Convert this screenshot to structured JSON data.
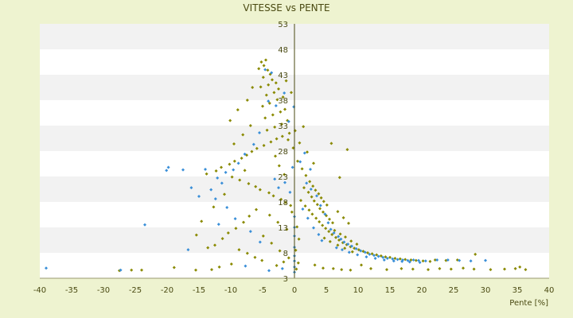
{
  "chart_data": {
    "type": "scatter",
    "title": "VITESSE vs PENTE",
    "xlabel": "Pente [%]",
    "ylabel": "",
    "xlim": [
      -40,
      40
    ],
    "ylim": [
      3,
      53
    ],
    "x_ticks": [
      -40,
      -35,
      -30,
      -25,
      -20,
      -15,
      -10,
      -5,
      0,
      5,
      10,
      15,
      20,
      25,
      30,
      35,
      40
    ],
    "y_ticks": [
      3,
      8,
      13,
      18,
      23,
      28,
      33,
      38,
      43,
      48,
      53
    ],
    "grid": "horizontal alternating bands",
    "legend": "none",
    "colors": {
      "background": "#eef3d0",
      "band_light": "#ffffff",
      "band_dark": "#f2f2f2",
      "axis": "#4a4a12",
      "series_olive": "#8a8a00",
      "series_blue": "#3a8fd8"
    },
    "series": [
      {
        "color": "#8a8a00",
        "points": [
          [
            -5.2,
            45.5
          ],
          [
            -4.8,
            44.8
          ],
          [
            -4.5,
            45.9
          ],
          [
            -5.6,
            44.2
          ],
          [
            -4.2,
            43.9
          ],
          [
            -3.8,
            43.1
          ],
          [
            -4.9,
            42.5
          ],
          [
            -3.5,
            42.0
          ],
          [
            -2.9,
            41.4
          ],
          [
            -4.1,
            41.0
          ],
          [
            -5.3,
            40.6
          ],
          [
            -2.5,
            40.2
          ],
          [
            -3.2,
            39.5
          ],
          [
            -4.4,
            39.0
          ],
          [
            -1.8,
            38.6
          ],
          [
            -2.7,
            38.1
          ],
          [
            -3.9,
            37.4
          ],
          [
            -5.0,
            36.8
          ],
          [
            -1.5,
            36.2
          ],
          [
            -2.2,
            35.7
          ],
          [
            -3.4,
            35.1
          ],
          [
            -4.6,
            34.5
          ],
          [
            -1.1,
            34.0
          ],
          [
            -2.0,
            33.3
          ],
          [
            -3.1,
            32.7
          ],
          [
            -4.3,
            32.1
          ],
          [
            -0.8,
            31.5
          ],
          [
            -1.9,
            30.9
          ],
          [
            -2.8,
            30.4
          ],
          [
            -3.7,
            29.8
          ],
          [
            -4.8,
            29.1
          ],
          [
            -5.9,
            28.5
          ],
          [
            -6.7,
            27.9
          ],
          [
            -7.5,
            27.2
          ],
          [
            -8.3,
            26.6
          ],
          [
            -9.4,
            26.0
          ],
          [
            -10.2,
            25.4
          ],
          [
            -11.5,
            24.8
          ],
          [
            -12.3,
            24.1
          ],
          [
            -13.8,
            23.5
          ],
          [
            -9.8,
            22.9
          ],
          [
            -8.6,
            22.3
          ],
          [
            -7.2,
            21.6
          ],
          [
            -6.1,
            21.0
          ],
          [
            -5.4,
            20.4
          ],
          [
            -4.0,
            19.8
          ],
          [
            -3.3,
            19.2
          ],
          [
            -2.1,
            18.5
          ],
          [
            -1.4,
            17.9
          ],
          [
            -0.6,
            17.3
          ],
          [
            0.5,
            26.0
          ],
          [
            1.2,
            24.5
          ],
          [
            1.8,
            23.2
          ],
          [
            2.4,
            22.0
          ],
          [
            2.9,
            21.1
          ],
          [
            3.3,
            20.3
          ],
          [
            3.8,
            19.6
          ],
          [
            4.2,
            18.8
          ],
          [
            4.6,
            18.1
          ],
          [
            5.1,
            17.4
          ],
          [
            1.5,
            20.8
          ],
          [
            2.2,
            19.9
          ],
          [
            2.7,
            19.0
          ],
          [
            3.1,
            18.2
          ],
          [
            3.6,
            17.5
          ],
          [
            4.0,
            16.7
          ],
          [
            4.5,
            16.0
          ],
          [
            5.0,
            15.3
          ],
          [
            5.5,
            14.6
          ],
          [
            6.0,
            13.9
          ],
          [
            1.0,
            18.3
          ],
          [
            1.7,
            17.2
          ],
          [
            2.3,
            16.4
          ],
          [
            2.8,
            15.6
          ],
          [
            3.4,
            14.8
          ],
          [
            3.9,
            14.1
          ],
          [
            4.4,
            13.4
          ],
          [
            4.9,
            12.8
          ],
          [
            5.4,
            12.2
          ],
          [
            5.9,
            11.6
          ],
          [
            6.5,
            11.0
          ],
          [
            7.0,
            10.5
          ],
          [
            7.6,
            10.0
          ],
          [
            8.2,
            9.6
          ],
          [
            8.8,
            9.2
          ],
          [
            9.4,
            8.9
          ],
          [
            10.1,
            8.6
          ],
          [
            10.8,
            8.3
          ],
          [
            11.5,
            8.0
          ],
          [
            12.2,
            7.8
          ],
          [
            12.9,
            7.6
          ],
          [
            13.6,
            7.4
          ],
          [
            14.3,
            7.2
          ],
          [
            15.0,
            7.1
          ],
          [
            15.8,
            6.9
          ],
          [
            16.6,
            6.8
          ],
          [
            17.4,
            6.7
          ],
          [
            18.3,
            6.6
          ],
          [
            19.1,
            6.5
          ],
          [
            20.2,
            6.4
          ],
          [
            6.3,
            12.4
          ],
          [
            7.2,
            11.7
          ],
          [
            8.0,
            11.1
          ],
          [
            8.9,
            10.3
          ],
          [
            9.8,
            9.7
          ],
          [
            4.7,
            10.9
          ],
          [
            5.6,
            10.2
          ],
          [
            6.8,
            9.5
          ],
          [
            7.9,
            8.9
          ],
          [
            9.1,
            8.2
          ],
          [
            -6.0,
            16.5
          ],
          [
            -7.1,
            15.2
          ],
          [
            -8.0,
            14.0
          ],
          [
            -9.2,
            12.8
          ],
          [
            -10.4,
            11.9
          ],
          [
            -11.3,
            10.8
          ],
          [
            -12.5,
            9.5
          ],
          [
            -8.7,
            8.6
          ],
          [
            -7.4,
            7.9
          ],
          [
            -6.2,
            7.1
          ],
          [
            -5.1,
            6.5
          ],
          [
            -9.9,
            5.8
          ],
          [
            -11.8,
            5.2
          ],
          [
            -13.0,
            4.7
          ],
          [
            -15.5,
            4.6
          ],
          [
            -18.9,
            5.1
          ],
          [
            -24.0,
            4.6
          ],
          [
            -25.6,
            4.6
          ],
          [
            -27.5,
            4.5
          ],
          [
            -2.8,
            5.5
          ],
          [
            -1.7,
            6.2
          ],
          [
            -0.9,
            7.0
          ],
          [
            -2.3,
            8.4
          ],
          [
            -3.6,
            9.9
          ],
          [
            -4.9,
            11.3
          ],
          [
            -1.2,
            12.6
          ],
          [
            -2.6,
            14.0
          ],
          [
            -3.9,
            15.4
          ],
          [
            -0.4,
            16.0
          ],
          [
            -1.6,
            23.4
          ],
          [
            -2.4,
            25.1
          ],
          [
            -3.0,
            27.0
          ],
          [
            -0.2,
            28.6
          ],
          [
            -1.0,
            30.2
          ],
          [
            0.1,
            32.0
          ],
          [
            -0.5,
            39.5
          ],
          [
            -1.3,
            41.8
          ],
          [
            -6.6,
            40.5
          ],
          [
            -7.4,
            38.0
          ],
          [
            -8.9,
            36.1
          ],
          [
            -10.1,
            34.0
          ],
          [
            -6.9,
            33.0
          ],
          [
            -8.1,
            31.2
          ],
          [
            -9.5,
            29.4
          ],
          [
            -7.8,
            24.2
          ],
          [
            -11.0,
            19.5
          ],
          [
            -12.7,
            17.0
          ],
          [
            -14.6,
            14.2
          ],
          [
            -15.4,
            11.5
          ],
          [
            -13.6,
            9.0
          ],
          [
            6.8,
            16.1
          ],
          [
            7.7,
            14.9
          ],
          [
            8.5,
            13.8
          ],
          [
            5.8,
            29.5
          ],
          [
            8.3,
            28.3
          ],
          [
            7.1,
            22.8
          ],
          [
            2.0,
            27.8
          ],
          [
            3.0,
            25.6
          ],
          [
            0.8,
            29.6
          ],
          [
            1.4,
            32.8
          ],
          [
            10.5,
            5.6
          ],
          [
            12.0,
            4.9
          ],
          [
            14.5,
            4.7
          ],
          [
            16.8,
            4.9
          ],
          [
            18.6,
            4.8
          ],
          [
            21.0,
            4.7
          ],
          [
            22.8,
            4.9
          ],
          [
            24.6,
            4.8
          ],
          [
            26.5,
            5.0
          ],
          [
            28.2,
            4.8
          ],
          [
            30.8,
            4.7
          ],
          [
            33.0,
            4.8
          ],
          [
            34.7,
            4.9
          ],
          [
            36.3,
            4.7
          ],
          [
            35.4,
            5.2
          ],
          [
            28.4,
            7.7
          ],
          [
            25.6,
            6.6
          ],
          [
            23.8,
            6.5
          ],
          [
            22.1,
            6.6
          ],
          [
            21.3,
            6.3
          ],
          [
            3.2,
            5.6
          ],
          [
            4.5,
            5.0
          ],
          [
            6.1,
            4.9
          ],
          [
            7.4,
            4.7
          ],
          [
            8.8,
            4.6
          ],
          [
            0.3,
            4.8
          ],
          [
            0.6,
            6.0
          ],
          [
            0.2,
            8.5
          ],
          [
            0.7,
            10.7
          ],
          [
            0.4,
            13.1
          ]
        ]
      },
      {
        "color": "#3a8fd8",
        "points": [
          [
            -4.6,
            44.0
          ],
          [
            -3.6,
            43.4
          ],
          [
            -4.1,
            37.8
          ],
          [
            -2.9,
            36.9
          ],
          [
            -5.5,
            31.6
          ],
          [
            -6.4,
            29.3
          ],
          [
            -7.8,
            27.4
          ],
          [
            -8.8,
            25.6
          ],
          [
            -9.6,
            24.3
          ],
          [
            -10.8,
            23.8
          ],
          [
            -12.1,
            22.7
          ],
          [
            -14.0,
            24.4
          ],
          [
            -17.5,
            24.3
          ],
          [
            -19.8,
            24.8
          ],
          [
            -20.1,
            24.2
          ],
          [
            -11.4,
            21.7
          ],
          [
            -13.1,
            20.4
          ],
          [
            -15.0,
            19.1
          ],
          [
            -16.2,
            20.8
          ],
          [
            -12.4,
            18.6
          ],
          [
            -23.5,
            13.5
          ],
          [
            -16.7,
            8.6
          ],
          [
            -6.9,
            12.2
          ],
          [
            -5.4,
            10.1
          ],
          [
            -7.7,
            5.4
          ],
          [
            -4.0,
            4.5
          ],
          [
            -1.9,
            4.9
          ],
          [
            0.0,
            4.2
          ],
          [
            0.0,
            5.2
          ],
          [
            0.0,
            6.4
          ],
          [
            0.0,
            7.4
          ],
          [
            0.0,
            9.1
          ],
          [
            0.0,
            11.3
          ],
          [
            0.0,
            13.0
          ],
          [
            0.0,
            15.1
          ],
          [
            -0.7,
            19.9
          ],
          [
            -1.5,
            21.8
          ],
          [
            -0.3,
            24.8
          ],
          [
            0.9,
            25.9
          ],
          [
            1.6,
            27.6
          ],
          [
            2.5,
            24.4
          ],
          [
            1.9,
            21.7
          ],
          [
            2.6,
            20.5
          ],
          [
            3.5,
            19.2
          ],
          [
            4.1,
            17.3
          ],
          [
            4.8,
            15.6
          ],
          [
            5.3,
            13.9
          ],
          [
            5.7,
            12.6
          ],
          [
            6.2,
            11.9
          ],
          [
            6.9,
            11.2
          ],
          [
            7.3,
            10.7
          ],
          [
            7.8,
            10.1
          ],
          [
            8.4,
            9.7
          ],
          [
            9.0,
            9.3
          ],
          [
            9.7,
            8.8
          ],
          [
            10.4,
            8.4
          ],
          [
            11.1,
            8.1
          ],
          [
            11.8,
            7.7
          ],
          [
            12.5,
            7.5
          ],
          [
            13.2,
            7.3
          ],
          [
            13.9,
            7.1
          ],
          [
            14.6,
            6.9
          ],
          [
            15.4,
            6.8
          ],
          [
            16.2,
            6.7
          ],
          [
            17.0,
            6.6
          ],
          [
            17.8,
            6.5
          ],
          [
            18.7,
            6.6
          ],
          [
            19.5,
            6.5
          ],
          [
            20.6,
            6.4
          ],
          [
            22.4,
            6.6
          ],
          [
            24.1,
            6.6
          ],
          [
            25.9,
            6.5
          ],
          [
            27.7,
            6.4
          ],
          [
            30.0,
            6.5
          ],
          [
            6.6,
            9.0
          ],
          [
            7.5,
            8.6
          ],
          [
            8.6,
            8.1
          ],
          [
            9.9,
            7.6
          ],
          [
            11.3,
            7.2
          ],
          [
            12.7,
            6.9
          ],
          [
            14.1,
            6.6
          ],
          [
            15.6,
            6.4
          ],
          [
            16.9,
            6.3
          ],
          [
            18.1,
            6.2
          ],
          [
            19.7,
            6.1
          ],
          [
            3.0,
            12.9
          ],
          [
            3.8,
            11.6
          ],
          [
            4.3,
            10.4
          ],
          [
            2.1,
            14.8
          ],
          [
            1.3,
            16.6
          ],
          [
            -39.0,
            5.0
          ],
          [
            -27.3,
            4.6
          ],
          [
            -9.3,
            14.7
          ],
          [
            -10.6,
            16.9
          ],
          [
            -11.9,
            13.6
          ],
          [
            -3.1,
            22.5
          ],
          [
            -2.5,
            20.8
          ],
          [
            -0.9,
            33.8
          ],
          [
            -1.6,
            39.4
          ],
          [
            -0.1,
            36.7
          ]
        ]
      }
    ]
  }
}
